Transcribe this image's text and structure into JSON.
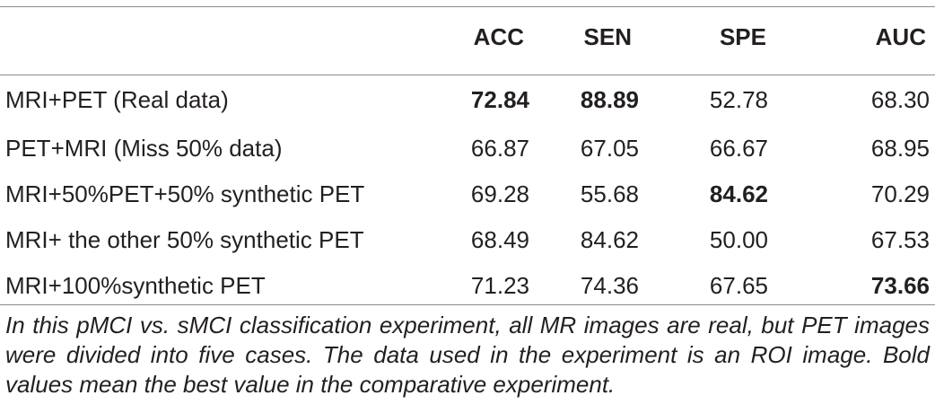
{
  "table": {
    "columns": [
      "",
      "ACC",
      "SEN",
      "SPE",
      "AUC"
    ],
    "rows": [
      {
        "label": "MRI+PET (Real data)",
        "acc": "72.84",
        "sen": "88.89",
        "spe": "52.78",
        "auc": "68.30",
        "bold": [
          "acc",
          "sen"
        ]
      },
      {
        "label": "PET+MRI (Miss 50% data)",
        "acc": "66.87",
        "sen": "67.05",
        "spe": "66.67",
        "auc": "68.95",
        "bold": []
      },
      {
        "label": "MRI+50%PET+50% synthetic PET",
        "acc": "69.28",
        "sen": "55.68",
        "spe": "84.62",
        "auc": "70.29",
        "bold": [
          "spe"
        ]
      },
      {
        "label": "MRI+ the other 50% synthetic PET",
        "acc": "68.49",
        "sen": "84.62",
        "spe": "50.00",
        "auc": "67.53",
        "bold": []
      },
      {
        "label": "MRI+100%synthetic PET",
        "acc": "71.23",
        "sen": "74.36",
        "spe": "67.65",
        "auc": "73.66",
        "bold": [
          "auc"
        ]
      }
    ]
  },
  "footnote": "In this pMCI vs. sMCI classification experiment, all MR images are real, but PET images were divided into five cases. The data used in the experiment is an ROI image. Bold values mean the best value in the comparative experiment."
}
